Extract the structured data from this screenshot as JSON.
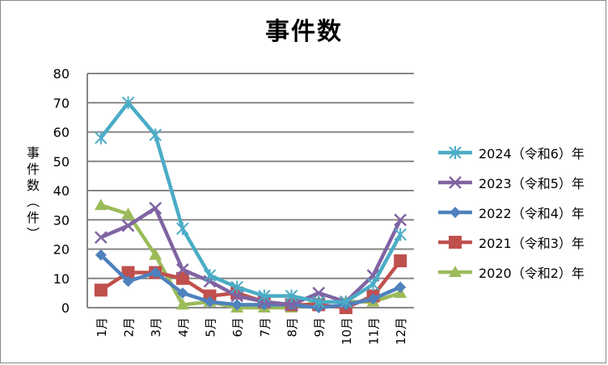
{
  "chart_data": {
    "type": "line",
    "title": "事件数",
    "xlabel": "",
    "ylabel": "事件数（件）",
    "ylim": [
      0,
      80
    ],
    "yticks": [
      0,
      10,
      20,
      30,
      40,
      50,
      60,
      70,
      80
    ],
    "grid": true,
    "legend_position": "right",
    "categories": [
      "1月",
      "2月",
      "3月",
      "4月",
      "5月",
      "6月",
      "7月",
      "8月",
      "9月",
      "10月",
      "11月",
      "12月"
    ],
    "series": [
      {
        "name": "2024（令和6）年",
        "color": "#4BACC6",
        "marker": "star",
        "values": [
          58,
          70,
          59,
          27,
          11,
          7,
          4,
          4,
          2,
          2,
          8,
          25
        ]
      },
      {
        "name": "2023（令和5）年",
        "color": "#8064A2",
        "marker": "x",
        "values": [
          24,
          28,
          34,
          13,
          9,
          4,
          2,
          1,
          5,
          2,
          11,
          30
        ]
      },
      {
        "name": "2022（令和4）年",
        "color": "#4F81BD",
        "marker": "diamond",
        "values": [
          18,
          9,
          12,
          5,
          2,
          1,
          1,
          1,
          0,
          1,
          3,
          7
        ]
      },
      {
        "name": "2021（令和3）年",
        "color": "#C0504D",
        "marker": "square",
        "values": [
          6,
          12,
          12,
          10,
          4,
          5,
          2,
          1,
          1,
          0,
          4,
          16
        ]
      },
      {
        "name": "2020（令和2）年",
        "color": "#9BBB59",
        "marker": "triangle",
        "values": [
          35,
          32,
          18,
          1,
          2,
          0,
          0,
          0,
          2,
          2,
          2,
          5
        ]
      }
    ]
  },
  "ylabel_chars": [
    "事",
    "件",
    "数",
    "︵",
    "件",
    "︶"
  ]
}
